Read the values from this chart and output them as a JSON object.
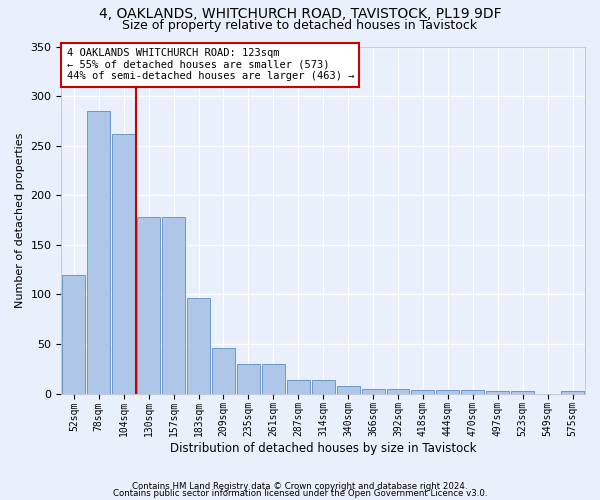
{
  "title1": "4, OAKLANDS, WHITCHURCH ROAD, TAVISTOCK, PL19 9DF",
  "title2": "Size of property relative to detached houses in Tavistock",
  "xlabel": "Distribution of detached houses by size in Tavistock",
  "ylabel": "Number of detached properties",
  "footnote1": "Contains HM Land Registry data © Crown copyright and database right 2024.",
  "footnote2": "Contains public sector information licensed under the Open Government Licence v3.0.",
  "categories": [
    "52sqm",
    "78sqm",
    "104sqm",
    "130sqm",
    "157sqm",
    "183sqm",
    "209sqm",
    "235sqm",
    "261sqm",
    "287sqm",
    "314sqm",
    "340sqm",
    "366sqm",
    "392sqm",
    "418sqm",
    "444sqm",
    "470sqm",
    "497sqm",
    "523sqm",
    "549sqm",
    "575sqm"
  ],
  "values": [
    120,
    285,
    262,
    178,
    178,
    96,
    46,
    30,
    30,
    14,
    14,
    8,
    5,
    5,
    4,
    4,
    4,
    3,
    3,
    0,
    3
  ],
  "bar_color": "#aec6e8",
  "bar_edge_color": "#5a8fc2",
  "property_line_color": "#cc0000",
  "annotation_text": "4 OAKLANDS WHITCHURCH ROAD: 123sqm\n← 55% of detached houses are smaller (573)\n44% of semi-detached houses are larger (463) →",
  "annotation_box_color": "#ffffff",
  "annotation_box_edge": "#cc0000",
  "ylim": [
    0,
    350
  ],
  "yticks": [
    0,
    50,
    100,
    150,
    200,
    250,
    300,
    350
  ],
  "bg_color": "#eaf0fb",
  "grid_color": "#ffffff",
  "title_fontsize": 10,
  "subtitle_fontsize": 9
}
